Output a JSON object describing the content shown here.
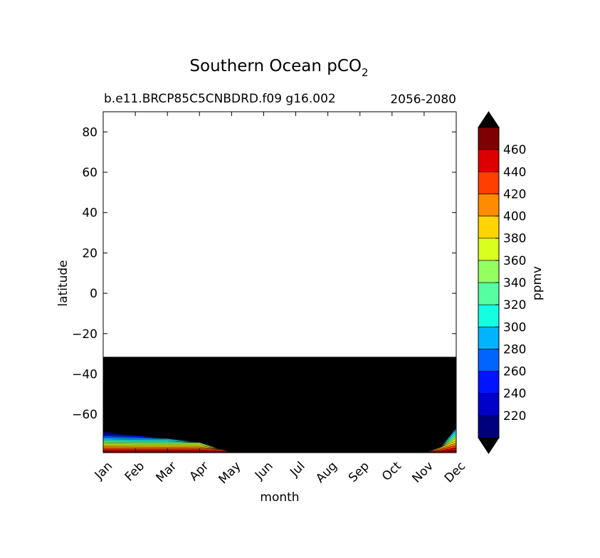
{
  "chart_data": {
    "type": "heatmap",
    "title": "Southern Ocean pCO",
    "title_subscript": "2",
    "subtitle_left": "b.e11.BRCP85C5CNBDRD.f09 g16.002",
    "subtitle_right": "2056-2080",
    "xlabel": "month",
    "ylabel": "latitude",
    "x_categories": [
      "Jan",
      "Feb",
      "Mar",
      "Apr",
      "May",
      "Jun",
      "Jul",
      "Aug",
      "Sep",
      "Oct",
      "Nov",
      "Dec"
    ],
    "xlim": [
      0,
      11
    ],
    "ylim": [
      -79,
      90
    ],
    "y_ticks": [
      {
        "value": 80,
        "label": "80"
      },
      {
        "value": 60,
        "label": "60"
      },
      {
        "value": 40,
        "label": "40"
      },
      {
        "value": 20,
        "label": "20"
      },
      {
        "value": 0,
        "label": "0"
      },
      {
        "value": -20,
        "label": "−20"
      },
      {
        "value": -40,
        "label": "−40"
      },
      {
        "value": -60,
        "label": "−60"
      }
    ],
    "data_region": {
      "lat_min": -79,
      "lat_max": -31.5,
      "fill": "above-max",
      "fill_color": "#000000"
    },
    "edge_contours": [
      {
        "month": 0,
        "lat_top": -68.5,
        "levels_visible": 14
      },
      {
        "month": 1,
        "lat_top": -70.5,
        "levels_visible": 12
      },
      {
        "month": 2,
        "lat_top": -72,
        "levels_visible": 10
      },
      {
        "month": 3,
        "lat_top": -74,
        "levels_visible": 7
      },
      {
        "month": 3.7,
        "lat_top": -77.5,
        "levels_visible": 3
      },
      {
        "month": 4,
        "lat_top": -79,
        "levels_visible": 0
      },
      {
        "month": 10,
        "lat_top": -79,
        "levels_visible": 0
      },
      {
        "month": 10.5,
        "lat_top": -76.5,
        "levels_visible": 5
      },
      {
        "month": 11,
        "lat_top": -67,
        "levels_visible": 10
      }
    ],
    "colorbar": {
      "label": "ppmv",
      "extend": "both",
      "tick_labels": [
        "220",
        "240",
        "260",
        "280",
        "300",
        "320",
        "340",
        "360",
        "380",
        "400",
        "420",
        "440",
        "460"
      ],
      "levels": [
        200,
        220,
        240,
        260,
        280,
        300,
        320,
        340,
        360,
        380,
        400,
        420,
        440,
        460,
        480
      ],
      "colors": [
        "#00007f",
        "#0000c8",
        "#0014ff",
        "#0064ff",
        "#00b4ff",
        "#14ffe2",
        "#55ffa1",
        "#96ff60",
        "#d8ff1e",
        "#ffd400",
        "#ff8c00",
        "#ff3f00",
        "#dd0000",
        "#7f0000"
      ],
      "under_color": "#000000",
      "over_color": "#000000"
    }
  }
}
